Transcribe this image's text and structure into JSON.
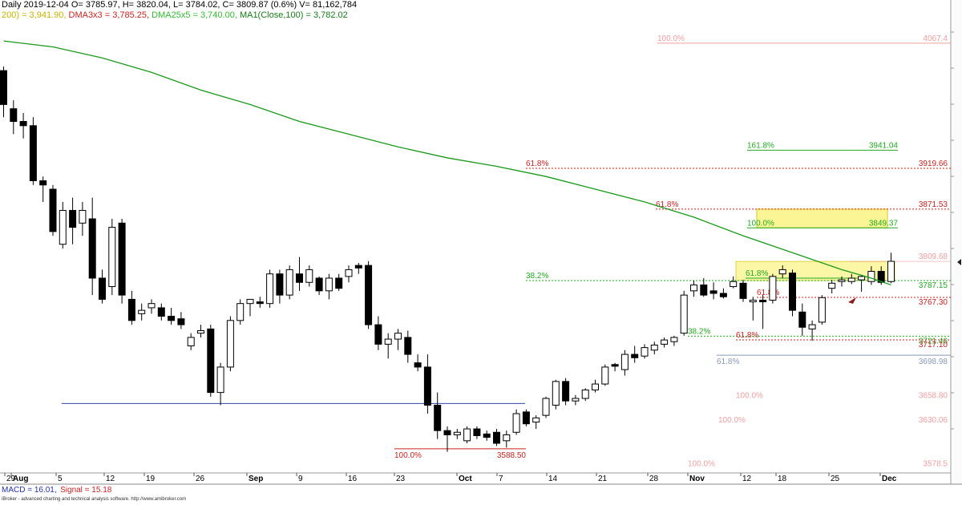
{
  "header": {
    "line1": "Daily 2019-12-04 O= 3785.97, H= 3820.04, L= 3784.02, C= 3809.87 (0.6%) V= 81,162,784",
    "line2_ma200": "200) = 3,941.90,",
    "line2_dma3": "DMA3x3 = 3,785.25,",
    "line2_dma25": "DMA25x5 = 3,740.00,",
    "line2_ma100": "MA1(Close,100) = 3,782.02"
  },
  "footer": {
    "macd_label": "MACD = 16.01,",
    "signal_label": "Signal = 15.18",
    "credit": "iBroker - advanced charting and technical analysis software. http://www.amibroker.com"
  },
  "colors": {
    "ma_line": "#1a9a1a",
    "fib_red": "#cc2222",
    "fib_green": "#22aa22",
    "fib_faded": "#f0a0a0",
    "fib_grey": "#8899bb",
    "zone_fill": "#fbf48a",
    "support_line": "#3344aa",
    "axis_grid": "#cccccc"
  },
  "chart_data": {
    "type": "candlestick",
    "instrument_period": "Daily",
    "ylim": [
      3560,
      4090
    ],
    "x_tick_labels": [
      "29",
      "Aug",
      "5",
      "12",
      "19",
      "26",
      "Sep",
      "9",
      "16",
      "23",
      "Oct",
      "7",
      "14",
      "21",
      "28",
      "Nov",
      "12",
      "18",
      "25",
      "Dec"
    ],
    "candles": [
      {
        "i": 0,
        "o": 4035,
        "h": 4040,
        "l": 3980,
        "c": 3995
      },
      {
        "i": 1,
        "o": 3990,
        "h": 4000,
        "l": 3960,
        "c": 3975
      },
      {
        "i": 2,
        "o": 3975,
        "h": 3985,
        "l": 3955,
        "c": 3970
      },
      {
        "i": 3,
        "o": 3970,
        "h": 3980,
        "l": 3900,
        "c": 3905
      },
      {
        "i": 4,
        "o": 3905,
        "h": 3910,
        "l": 3880,
        "c": 3900
      },
      {
        "i": 5,
        "o": 3895,
        "h": 3900,
        "l": 3840,
        "c": 3845
      },
      {
        "i": 6,
        "o": 3830,
        "h": 3880,
        "l": 3825,
        "c": 3870
      },
      {
        "i": 7,
        "o": 3870,
        "h": 3885,
        "l": 3830,
        "c": 3850
      },
      {
        "i": 8,
        "o": 3855,
        "h": 3880,
        "l": 3840,
        "c": 3870
      },
      {
        "i": 9,
        "o": 3860,
        "h": 3885,
        "l": 3770,
        "c": 3790
      },
      {
        "i": 10,
        "o": 3790,
        "h": 3800,
        "l": 3760,
        "c": 3765
      },
      {
        "i": 11,
        "o": 3780,
        "h": 3860,
        "l": 3770,
        "c": 3850
      },
      {
        "i": 12,
        "o": 3855,
        "h": 3860,
        "l": 3760,
        "c": 3770
      },
      {
        "i": 13,
        "o": 3765,
        "h": 3775,
        "l": 3735,
        "c": 3740
      },
      {
        "i": 14,
        "o": 3748,
        "h": 3760,
        "l": 3740,
        "c": 3752
      },
      {
        "i": 15,
        "o": 3755,
        "h": 3765,
        "l": 3748,
        "c": 3760
      },
      {
        "i": 16,
        "o": 3755,
        "h": 3760,
        "l": 3740,
        "c": 3745
      },
      {
        "i": 17,
        "o": 3745,
        "h": 3755,
        "l": 3735,
        "c": 3740
      },
      {
        "i": 18,
        "o": 3742,
        "h": 3750,
        "l": 3730,
        "c": 3735
      },
      {
        "i": 19,
        "o": 3710,
        "h": 3725,
        "l": 3705,
        "c": 3720
      },
      {
        "i": 20,
        "o": 3725,
        "h": 3735,
        "l": 3720,
        "c": 3728
      },
      {
        "i": 21,
        "o": 3730,
        "h": 3735,
        "l": 3650,
        "c": 3655
      },
      {
        "i": 22,
        "o": 3655,
        "h": 3690,
        "l": 3640,
        "c": 3685
      },
      {
        "i": 23,
        "o": 3685,
        "h": 3745,
        "l": 3680,
        "c": 3740
      },
      {
        "i": 24,
        "o": 3740,
        "h": 3765,
        "l": 3735,
        "c": 3760
      },
      {
        "i": 25,
        "o": 3760,
        "h": 3765,
        "l": 3745,
        "c": 3765
      },
      {
        "i": 26,
        "o": 3762,
        "h": 3768,
        "l": 3755,
        "c": 3760
      },
      {
        "i": 27,
        "o": 3760,
        "h": 3800,
        "l": 3755,
        "c": 3795
      },
      {
        "i": 28,
        "o": 3795,
        "h": 3800,
        "l": 3760,
        "c": 3770
      },
      {
        "i": 29,
        "o": 3770,
        "h": 3805,
        "l": 3765,
        "c": 3800
      },
      {
        "i": 30,
        "o": 3795,
        "h": 3815,
        "l": 3775,
        "c": 3785
      },
      {
        "i": 31,
        "o": 3785,
        "h": 3805,
        "l": 3780,
        "c": 3800
      },
      {
        "i": 32,
        "o": 3790,
        "h": 3792,
        "l": 3770,
        "c": 3775
      },
      {
        "i": 33,
        "o": 3775,
        "h": 3795,
        "l": 3765,
        "c": 3790
      },
      {
        "i": 34,
        "o": 3790,
        "h": 3795,
        "l": 3775,
        "c": 3778
      },
      {
        "i": 35,
        "o": 3792,
        "h": 3805,
        "l": 3785,
        "c": 3800
      },
      {
        "i": 36,
        "o": 3805,
        "h": 3808,
        "l": 3795,
        "c": 3802
      },
      {
        "i": 37,
        "o": 3805,
        "h": 3810,
        "l": 3730,
        "c": 3735
      },
      {
        "i": 38,
        "o": 3735,
        "h": 3745,
        "l": 3705,
        "c": 3712
      },
      {
        "i": 39,
        "o": 3712,
        "h": 3725,
        "l": 3695,
        "c": 3718
      },
      {
        "i": 40,
        "o": 3718,
        "h": 3730,
        "l": 3705,
        "c": 3725
      },
      {
        "i": 41,
        "o": 3720,
        "h": 3728,
        "l": 3690,
        "c": 3700
      },
      {
        "i": 42,
        "o": 3690,
        "h": 3700,
        "l": 3680,
        "c": 3685
      },
      {
        "i": 43,
        "o": 3685,
        "h": 3700,
        "l": 3630,
        "c": 3640
      },
      {
        "i": 44,
        "o": 3640,
        "h": 3655,
        "l": 3600,
        "c": 3610
      },
      {
        "i": 45,
        "o": 3610,
        "h": 3615,
        "l": 3585,
        "c": 3605
      },
      {
        "i": 46,
        "o": 3605,
        "h": 3612,
        "l": 3600,
        "c": 3608
      },
      {
        "i": 47,
        "o": 3598,
        "h": 3615,
        "l": 3595,
        "c": 3612
      },
      {
        "i": 48,
        "o": 3612,
        "h": 3615,
        "l": 3600,
        "c": 3604
      },
      {
        "i": 49,
        "o": 3606,
        "h": 3610,
        "l": 3598,
        "c": 3602
      },
      {
        "i": 50,
        "o": 3608,
        "h": 3612,
        "l": 3592,
        "c": 3595
      },
      {
        "i": 51,
        "o": 3598,
        "h": 3610,
        "l": 3590,
        "c": 3605
      },
      {
        "i": 52,
        "o": 3608,
        "h": 3635,
        "l": 3605,
        "c": 3630
      },
      {
        "i": 53,
        "o": 3632,
        "h": 3635,
        "l": 3615,
        "c": 3618
      },
      {
        "i": 54,
        "o": 3620,
        "h": 3628,
        "l": 3612,
        "c": 3625
      },
      {
        "i": 55,
        "o": 3628,
        "h": 3650,
        "l": 3625,
        "c": 3648
      },
      {
        "i": 56,
        "o": 3640,
        "h": 3670,
        "l": 3635,
        "c": 3668
      },
      {
        "i": 57,
        "o": 3668,
        "h": 3672,
        "l": 3640,
        "c": 3645
      },
      {
        "i": 58,
        "o": 3645,
        "h": 3652,
        "l": 3640,
        "c": 3648
      },
      {
        "i": 59,
        "o": 3648,
        "h": 3660,
        "l": 3645,
        "c": 3658
      },
      {
        "i": 60,
        "o": 3658,
        "h": 3670,
        "l": 3655,
        "c": 3665
      },
      {
        "i": 61,
        "o": 3665,
        "h": 3688,
        "l": 3663,
        "c": 3685
      },
      {
        "i": 62,
        "o": 3688,
        "h": 3690,
        "l": 3680,
        "c": 3686
      },
      {
        "i": 63,
        "o": 3682,
        "h": 3705,
        "l": 3675,
        "c": 3700
      },
      {
        "i": 64,
        "o": 3700,
        "h": 3710,
        "l": 3690,
        "c": 3696
      },
      {
        "i": 65,
        "o": 3698,
        "h": 3712,
        "l": 3695,
        "c": 3708
      },
      {
        "i": 66,
        "o": 3705,
        "h": 3715,
        "l": 3700,
        "c": 3711
      },
      {
        "i": 67,
        "o": 3712,
        "h": 3720,
        "l": 3708,
        "c": 3717
      },
      {
        "i": 68,
        "o": 3715,
        "h": 3722,
        "l": 3710,
        "c": 3720
      },
      {
        "i": 69,
        "o": 3725,
        "h": 3775,
        "l": 3722,
        "c": 3770
      },
      {
        "i": 70,
        "o": 3775,
        "h": 3787,
        "l": 3768,
        "c": 3782
      },
      {
        "i": 71,
        "o": 3782,
        "h": 3790,
        "l": 3768,
        "c": 3770
      },
      {
        "i": 72,
        "o": 3775,
        "h": 3785,
        "l": 3765,
        "c": 3772
      },
      {
        "i": 73,
        "o": 3772,
        "h": 3778,
        "l": 3766,
        "c": 3768
      },
      {
        "i": 74,
        "o": 3780,
        "h": 3792,
        "l": 3778,
        "c": 3786
      },
      {
        "i": 75,
        "o": 3784,
        "h": 3788,
        "l": 3762,
        "c": 3766
      },
      {
        "i": 76,
        "o": 3762,
        "h": 3768,
        "l": 3740,
        "c": 3764
      },
      {
        "i": 77,
        "o": 3764,
        "h": 3770,
        "l": 3730,
        "c": 3762
      },
      {
        "i": 78,
        "o": 3764,
        "h": 3795,
        "l": 3760,
        "c": 3792
      },
      {
        "i": 79,
        "o": 3795,
        "h": 3805,
        "l": 3790,
        "c": 3800
      },
      {
        "i": 80,
        "o": 3796,
        "h": 3800,
        "l": 3745,
        "c": 3752
      },
      {
        "i": 81,
        "o": 3750,
        "h": 3760,
        "l": 3722,
        "c": 3732
      },
      {
        "i": 82,
        "o": 3730,
        "h": 3740,
        "l": 3716,
        "c": 3735
      },
      {
        "i": 83,
        "o": 3738,
        "h": 3770,
        "l": 3735,
        "c": 3767
      },
      {
        "i": 84,
        "o": 3778,
        "h": 3788,
        "l": 3772,
        "c": 3784
      },
      {
        "i": 85,
        "o": 3786,
        "h": 3792,
        "l": 3780,
        "c": 3788
      },
      {
        "i": 86,
        "o": 3786,
        "h": 3795,
        "l": 3783,
        "c": 3790
      },
      {
        "i": 87,
        "o": 3788,
        "h": 3794,
        "l": 3774,
        "c": 3792
      },
      {
        "i": 88,
        "o": 3786,
        "h": 3804,
        "l": 3782,
        "c": 3798
      },
      {
        "i": 89,
        "o": 3798,
        "h": 3804,
        "l": 3782,
        "c": 3785
      },
      {
        "i": 90,
        "o": 3785.97,
        "h": 3820.04,
        "l": 3784.02,
        "c": 3809.87
      }
    ],
    "ma_series_name": "MA1(Close,100)",
    "ma_values": [
      [
        0,
        4070
      ],
      [
        5,
        4063
      ],
      [
        10,
        4050
      ],
      [
        15,
        4033
      ],
      [
        20,
        4012
      ],
      [
        25,
        3995
      ],
      [
        30,
        3975
      ],
      [
        35,
        3960
      ],
      [
        40,
        3945
      ],
      [
        45,
        3932
      ],
      [
        50,
        3922
      ],
      [
        55,
        3910
      ],
      [
        60,
        3895
      ],
      [
        65,
        3880
      ],
      [
        70,
        3862
      ],
      [
        75,
        3840
      ],
      [
        80,
        3820
      ],
      [
        85,
        3800
      ],
      [
        88,
        3790
      ],
      [
        90,
        3782
      ]
    ],
    "fib_levels": [
      {
        "pct": "100.0%",
        "value": "4067.4",
        "style": "faded"
      },
      {
        "pct": "161.8%",
        "value": "3941.04",
        "style": "green"
      },
      {
        "pct": "61.8%",
        "value": "3919.66",
        "style": "red"
      },
      {
        "pct": "61.8%",
        "value": "3871.53",
        "style": "red"
      },
      {
        "pct": "100.0%",
        "value": "3849.37",
        "style": "green"
      },
      {
        "pct": "",
        "value": "3809.68",
        "style": "faded"
      },
      {
        "pct": "38.2%",
        "value": "3787.15",
        "style": "green"
      },
      {
        "pct": "61.8%",
        "value": "",
        "style": "green"
      },
      {
        "pct": "61.8%",
        "value": "3767.30",
        "style": "red"
      },
      {
        "pct": "38.2%",
        "value": "3721.46",
        "style": "green"
      },
      {
        "pct": "61.8%",
        "value": "3717.10",
        "style": "red"
      },
      {
        "pct": "61.8%",
        "value": "3698.98",
        "style": "grey"
      },
      {
        "pct": "100.0%",
        "value": "3658.80",
        "style": "faded"
      },
      {
        "pct": "100.0%",
        "value": "3630.06",
        "style": "faded"
      },
      {
        "pct": "100.0%",
        "value": "3588.50",
        "style": "red"
      },
      {
        "pct": "100.0%",
        "value": "3578.5",
        "style": "faded"
      }
    ],
    "support_level": 3642,
    "grid": false,
    "legend": "none"
  }
}
